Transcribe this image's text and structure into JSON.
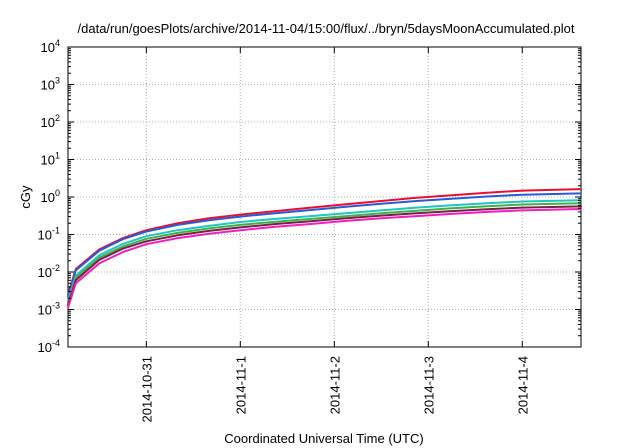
{
  "chart_data": {
    "type": "line",
    "title": "/data/run/goesPlots/archive/2014-11-04/15:00/flux/../bryn/5daysMoonAccumulated.plot",
    "xlabel": "Coordinated Universal Time (UTC)",
    "ylabel": "cGy",
    "y_scale": "log",
    "ylim": [
      0.0001,
      10000
    ],
    "y_ticks": [
      {
        "value": 0.0001,
        "base": "10",
        "exp": "-4"
      },
      {
        "value": 0.001,
        "base": "10",
        "exp": "-3"
      },
      {
        "value": 0.01,
        "base": "10",
        "exp": "-2"
      },
      {
        "value": 0.1,
        "base": "10",
        "exp": "-1"
      },
      {
        "value": 1,
        "base": "10",
        "exp": "0"
      },
      {
        "value": 10,
        "base": "10",
        "exp": "1"
      },
      {
        "value": 100,
        "base": "10",
        "exp": "2"
      },
      {
        "value": 1000,
        "base": "10",
        "exp": "3"
      },
      {
        "value": 10000,
        "base": "10",
        "exp": "4"
      }
    ],
    "xlim": [
      "2014-10-30 04:00",
      "2014-11-04 15:00"
    ],
    "x_ticks": [
      "2014-10-31",
      "2014-11-1",
      "2014-11-2",
      "2014-11-3",
      "2014-11-4"
    ],
    "x_tick_values": [
      "2014-10-31 00:00",
      "2014-11-01 00:00",
      "2014-11-02 00:00",
      "2014-11-03 00:00",
      "2014-11-04 00:00"
    ],
    "grid": true,
    "series": [
      {
        "color": "#e8112d",
        "values": [
          0.0025,
          0.012,
          0.04,
          0.08,
          0.13,
          0.2,
          0.27,
          0.34,
          0.42,
          0.52,
          0.64,
          0.78,
          0.95,
          1.12,
          1.3,
          1.48,
          1.62
        ]
      },
      {
        "color": "#2a5bd7",
        "values": [
          0.0022,
          0.011,
          0.037,
          0.075,
          0.12,
          0.18,
          0.24,
          0.3,
          0.37,
          0.45,
          0.55,
          0.66,
          0.78,
          0.9,
          1.03,
          1.15,
          1.25
        ]
      },
      {
        "color": "#22c3c3",
        "values": [
          0.0017,
          0.008,
          0.028,
          0.056,
          0.09,
          0.13,
          0.17,
          0.215,
          0.26,
          0.31,
          0.37,
          0.44,
          0.52,
          0.6,
          0.68,
          0.76,
          0.82
        ]
      },
      {
        "color": "#3cb34a",
        "values": [
          0.0015,
          0.007,
          0.024,
          0.048,
          0.077,
          0.11,
          0.145,
          0.18,
          0.22,
          0.26,
          0.31,
          0.37,
          0.43,
          0.5,
          0.57,
          0.63,
          0.68
        ]
      },
      {
        "color": "#7a1f45",
        "values": [
          0.0013,
          0.006,
          0.021,
          0.042,
          0.066,
          0.095,
          0.125,
          0.155,
          0.19,
          0.225,
          0.27,
          0.32,
          0.37,
          0.42,
          0.47,
          0.52,
          0.56
        ]
      },
      {
        "color": "#f01fbf",
        "values": [
          0.0011,
          0.005,
          0.017,
          0.034,
          0.055,
          0.08,
          0.105,
          0.13,
          0.16,
          0.19,
          0.23,
          0.27,
          0.31,
          0.355,
          0.4,
          0.44,
          0.48
        ]
      }
    ],
    "x": [
      "2014-10-30 04:00",
      "2014-10-30 06:00",
      "2014-10-30 12:00",
      "2014-10-30 18:00",
      "2014-10-31 00:00",
      "2014-10-31 08:00",
      "2014-10-31 16:00",
      "2014-11-01 00:00",
      "2014-11-01 09:00",
      "2014-11-01 18:00",
      "2014-11-02 03:00",
      "2014-11-02 12:00",
      "2014-11-02 21:00",
      "2014-11-03 06:00",
      "2014-11-03 15:00",
      "2014-11-04 00:00",
      "2014-11-04 15:00"
    ]
  }
}
